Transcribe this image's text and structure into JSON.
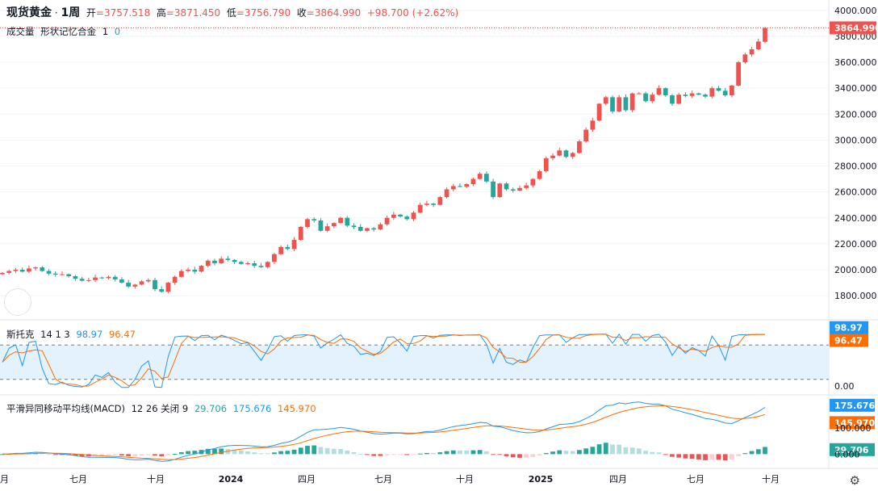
{
  "header": {
    "symbol": "现货黄金",
    "separator": "·",
    "interval": "1周",
    "open_label": "开",
    "open": "=3757.518",
    "high_label": "高",
    "high": "=3871.450",
    "low_label": "低",
    "low": "=3756.790",
    "close_label": "收",
    "close": "=3864.990",
    "change": "+98.700",
    "change_pct": "(+2.62%)"
  },
  "volume_row": {
    "label": "成交量",
    "name": "形状记忆合金",
    "value": "1",
    "extra": "0"
  },
  "stoch_legend": {
    "label": "斯托克",
    "params": "14 1 3",
    "k_value": "98.97",
    "d_value": "96.47"
  },
  "macd_legend": {
    "label": "平滑异同移动平均线(MACD)",
    "params": "12 26 关闭 9",
    "hist_value": "29.706",
    "macd_value": "175.676",
    "signal_value": "145.970"
  },
  "colors": {
    "up": "#ef5350",
    "down": "#26a69a",
    "k_line": "#2196f3",
    "d_line": "#ff6d00",
    "hist_up": "#26a69a",
    "hist_up_weak": "#b2dfdb",
    "hist_down": "#ef5350",
    "hist_down_weak": "#ffcdd2",
    "band_fill": "#e3f2fd"
  },
  "settings_icon": "gear-icon",
  "chart_data": {
    "type": "candlestick",
    "price_axis": {
      "ticks": [
        "4000.000",
        "3800.000",
        "3600.000",
        "3400.000",
        "3200.000",
        "3000.000",
        "2800.000",
        "2600.000",
        "2400.000",
        "2200.000",
        "2000.000",
        "1800.000"
      ],
      "ylim": [
        1620,
        4080
      ]
    },
    "last_price_label": "3864.990",
    "x_axis": {
      "labels": [
        "月",
        "七月",
        "十月",
        "2024",
        "四月",
        "七月",
        "十月",
        "2025",
        "四月",
        "七月",
        "十月"
      ]
    },
    "closes": [
      1975,
      1990,
      2000,
      1985,
      2010,
      2018,
      1990,
      1970,
      1962,
      1965,
      1950,
      1930,
      1915,
      1920,
      1940,
      1935,
      1945,
      1925,
      1900,
      1870,
      1885,
      1910,
      1920,
      1850,
      1830,
      1900,
      1945,
      1990,
      2000,
      1985,
      2030,
      2070,
      2050,
      2085,
      2075,
      2060,
      2045,
      2050,
      2030,
      2020,
      2060,
      2120,
      2175,
      2160,
      2230,
      2330,
      2390,
      2380,
      2300,
      2335,
      2360,
      2400,
      2340,
      2330,
      2300,
      2320,
      2310,
      2350,
      2400,
      2425,
      2410,
      2390,
      2440,
      2500,
      2510,
      2500,
      2560,
      2620,
      2645,
      2640,
      2660,
      2700,
      2740,
      2680,
      2560,
      2665,
      2620,
      2610,
      2630,
      2650,
      2700,
      2760,
      2860,
      2880,
      2920,
      2870,
      2900,
      2990,
      3080,
      3150,
      3280,
      3330,
      3220,
      3330,
      3230,
      3360,
      3360,
      3300,
      3350,
      3400,
      3345,
      3280,
      3350,
      3340,
      3360,
      3350,
      3335,
      3400,
      3380,
      3345,
      3420,
      3600,
      3660,
      3700,
      3760,
      3865
    ],
    "stoch_axis": {
      "ticks": [
        "98.97",
        "96.47",
        "0.00"
      ],
      "band": [
        20,
        80
      ]
    },
    "macd_axis": {
      "ticks": [
        "175.676",
        "145.970",
        "100.000",
        "29.706",
        "0.000"
      ]
    }
  }
}
